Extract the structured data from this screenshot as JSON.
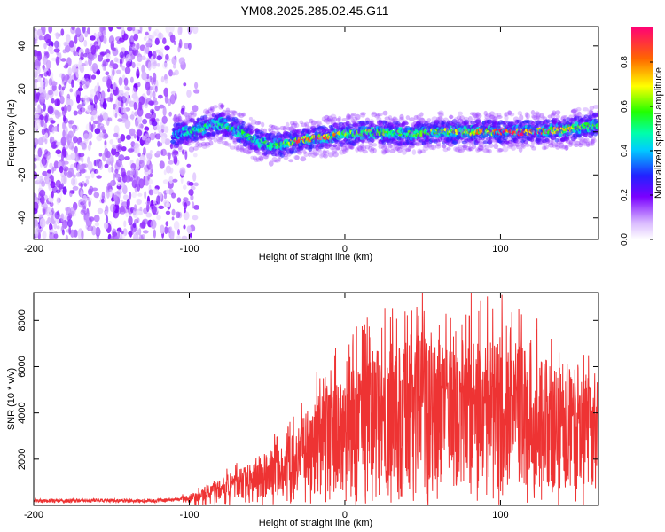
{
  "title": "YM08.2025.285.02.45.G11",
  "colorbar": {
    "label": "Normalized spectral amplitude",
    "range": [
      0,
      0.96
    ],
    "ticks": [
      "0.0",
      "0.2",
      "0.4",
      "0.6",
      "0.8"
    ],
    "tick_values": [
      0.0,
      0.2,
      0.4,
      0.6,
      0.8
    ]
  },
  "chart_data": [
    {
      "type": "heatmap",
      "xlabel": "Height of straight line (km)",
      "ylabel": "Frequency (Hz)",
      "xlim": [
        -200,
        163
      ],
      "ylim": [
        -50,
        49
      ],
      "xticks": [
        -200,
        -100,
        0,
        100
      ],
      "xtick_labels": [
        "-200",
        "-100",
        "0",
        "100"
      ],
      "yticks": [
        -40,
        -20,
        0,
        20,
        40
      ],
      "ytick_labels": [
        "-40",
        "-20",
        "0",
        "20",
        "40"
      ],
      "ridge_x": [
        -110,
        -100,
        -90,
        -80,
        -70,
        -60,
        -50,
        -40,
        -30,
        -20,
        -10,
        0,
        20,
        40,
        60,
        80,
        100,
        120,
        140,
        160
      ],
      "ridge_y": [
        -2,
        0,
        2,
        4,
        1,
        -3,
        -6,
        -6,
        -4,
        -3,
        -2,
        -1,
        0,
        -1,
        0,
        0,
        0,
        0,
        1,
        3
      ],
      "ridge_amplitude": [
        0.3,
        0.45,
        0.5,
        0.5,
        0.5,
        0.5,
        0.5,
        0.55,
        0.8,
        0.8,
        0.8,
        0.6,
        0.6,
        0.55,
        0.6,
        0.65,
        0.9,
        0.9,
        0.7,
        0.6
      ],
      "noise_region_x": [
        -200,
        -95
      ],
      "noise_amplitude": 0.15
    },
    {
      "type": "line",
      "xlabel": "Height of straight line (km)",
      "ylabel": "SNR (10 * v/v)",
      "xlim": [
        -200,
        163
      ],
      "ylim": [
        0,
        9200
      ],
      "xticks": [
        -200,
        -100,
        0,
        100
      ],
      "xtick_labels": [
        "-200",
        "-100",
        "0",
        "100"
      ],
      "yticks": [
        2000,
        4000,
        6000,
        8000
      ],
      "ytick_labels": [
        "2000",
        "4000",
        "6000",
        "8000"
      ],
      "color": "#ee3333",
      "x": [
        -200,
        -180,
        -160,
        -140,
        -120,
        -110,
        -100,
        -95,
        -90,
        -85,
        -80,
        -75,
        -70,
        -65,
        -60,
        -55,
        -50,
        -45,
        -40,
        -35,
        -30,
        -25,
        -20,
        -15,
        -10,
        -5,
        0,
        5,
        10,
        15,
        20,
        25,
        30,
        35,
        40,
        45,
        50,
        55,
        60,
        65,
        70,
        75,
        80,
        85,
        90,
        95,
        100,
        105,
        110,
        115,
        120,
        125,
        130,
        135,
        140,
        145,
        150,
        155,
        160,
        163
      ],
      "y": [
        200,
        200,
        220,
        200,
        200,
        250,
        300,
        400,
        500,
        600,
        700,
        800,
        900,
        1000,
        1100,
        1200,
        1300,
        1500,
        1600,
        1800,
        2000,
        2300,
        2500,
        2700,
        3000,
        3100,
        3200,
        3400,
        3500,
        3600,
        3800,
        3900,
        4000,
        4000,
        4200,
        4100,
        4300,
        4000,
        4200,
        4100,
        4300,
        4000,
        4200,
        4100,
        4000,
        4100,
        4200,
        4000,
        3900,
        3800,
        3700,
        3600,
        3500,
        3500,
        3400,
        3300,
        3300,
        3200,
        3100,
        3000
      ],
      "peaks": [
        {
          "x": 101,
          "y": 9100
        },
        {
          "x": 51,
          "y": 8400
        },
        {
          "x": 86,
          "y": 8400
        },
        {
          "x": 80,
          "y": 8200
        },
        {
          "x": 68,
          "y": 8100
        }
      ]
    }
  ]
}
